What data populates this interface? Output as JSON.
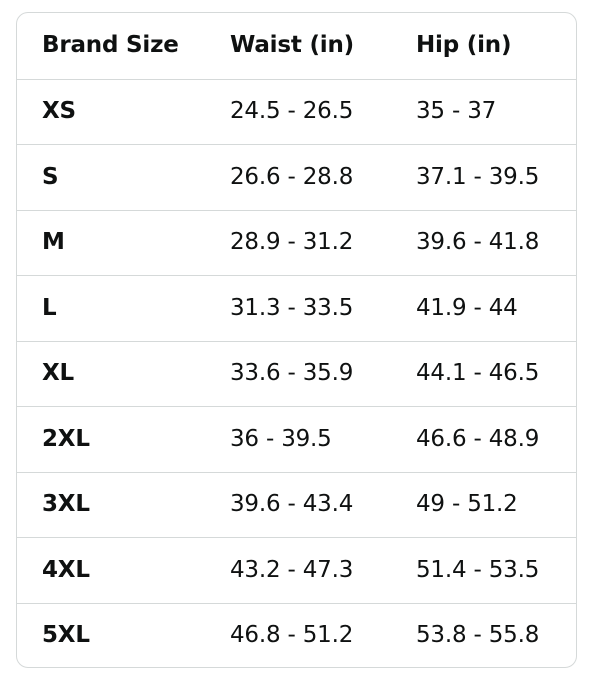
{
  "table": {
    "headers": [
      "Brand Size",
      "Waist (in)",
      "Hip (in)"
    ],
    "rows": [
      {
        "size": "XS",
        "waist": "24.5 - 26.5",
        "hip": "35 - 37"
      },
      {
        "size": "S",
        "waist": "26.6 - 28.8",
        "hip": "37.1 - 39.5"
      },
      {
        "size": "M",
        "waist": "28.9 - 31.2",
        "hip": "39.6 - 41.8"
      },
      {
        "size": "L",
        "waist": "31.3 - 33.5",
        "hip": "41.9 - 44"
      },
      {
        "size": "XL",
        "waist": "33.6 - 35.9",
        "hip": "44.1 - 46.5"
      },
      {
        "size": "2XL",
        "waist": "36 - 39.5",
        "hip": "46.6 - 48.9"
      },
      {
        "size": "3XL",
        "waist": "39.6 - 43.4",
        "hip": "49 - 51.2"
      },
      {
        "size": "4XL",
        "waist": "43.2 - 47.3",
        "hip": "51.4 - 53.5"
      },
      {
        "size": "5XL",
        "waist": "46.8 - 51.2",
        "hip": "53.8 - 55.8"
      }
    ]
  },
  "colors": {
    "text": "#0f1111",
    "border": "#d5d9d9",
    "background": "#ffffff"
  }
}
